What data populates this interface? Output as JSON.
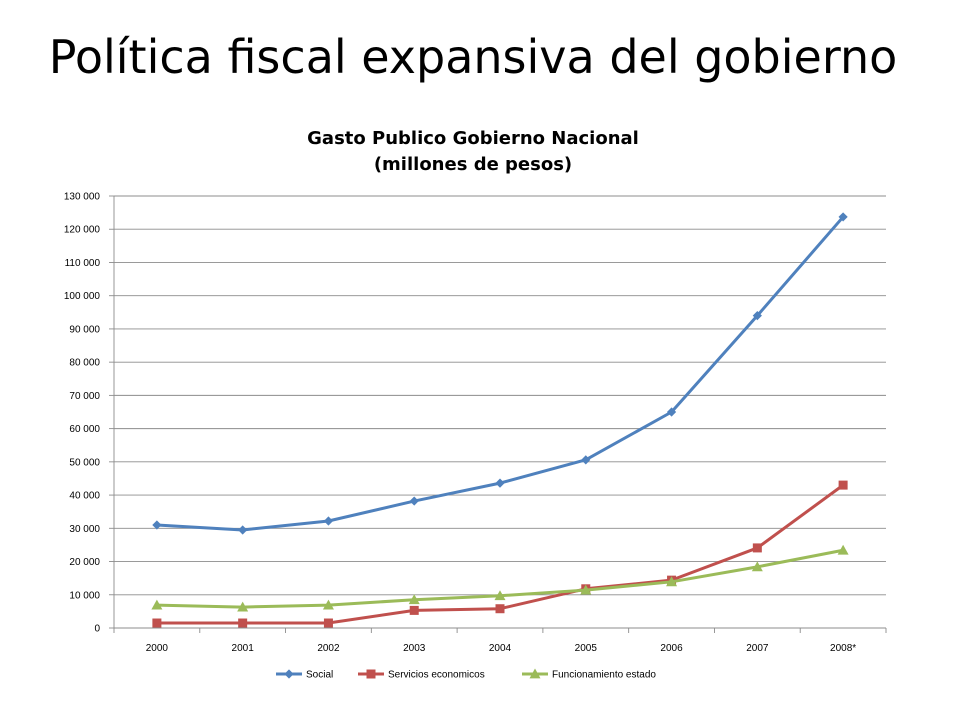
{
  "slide": {
    "title": "Política fiscal expansiva del gobierno"
  },
  "chart_data": {
    "type": "line",
    "title_line1": "Gasto Publico Gobierno Nacional",
    "title_line2": "(millones de pesos)",
    "xlabel": "",
    "ylabel": "",
    "categories": [
      "2000",
      "2001",
      "2002",
      "2003",
      "2004",
      "2005",
      "2006",
      "2007",
      "2008*"
    ],
    "ylim": [
      0,
      130000
    ],
    "yticks": [
      0,
      10000,
      20000,
      30000,
      40000,
      50000,
      60000,
      70000,
      80000,
      90000,
      100000,
      110000,
      120000,
      130000
    ],
    "ytick_labels": [
      "0",
      "10 000",
      "20 000",
      "30 000",
      "40 000",
      "50 000",
      "60 000",
      "70 000",
      "80 000",
      "90 000",
      "100 000",
      "110 000",
      "120 000",
      "130 000"
    ],
    "grid": true,
    "legend_position": "bottom",
    "series": [
      {
        "name": "Social",
        "marker": "diamond",
        "color": "#4F81BD",
        "values": [
          31000,
          29500,
          32200,
          38200,
          43600,
          50600,
          65000,
          94000,
          123700
        ]
      },
      {
        "name": "Servicios economicos",
        "marker": "square",
        "color": "#C0504D",
        "values": [
          1500,
          1500,
          1500,
          5300,
          5800,
          11800,
          14400,
          24100,
          43000
        ]
      },
      {
        "name": "Funcionamiento estado",
        "marker": "triangle",
        "color": "#9BBB59",
        "values": [
          6900,
          6300,
          6900,
          8500,
          9700,
          11400,
          13900,
          18400,
          23400
        ]
      }
    ]
  }
}
